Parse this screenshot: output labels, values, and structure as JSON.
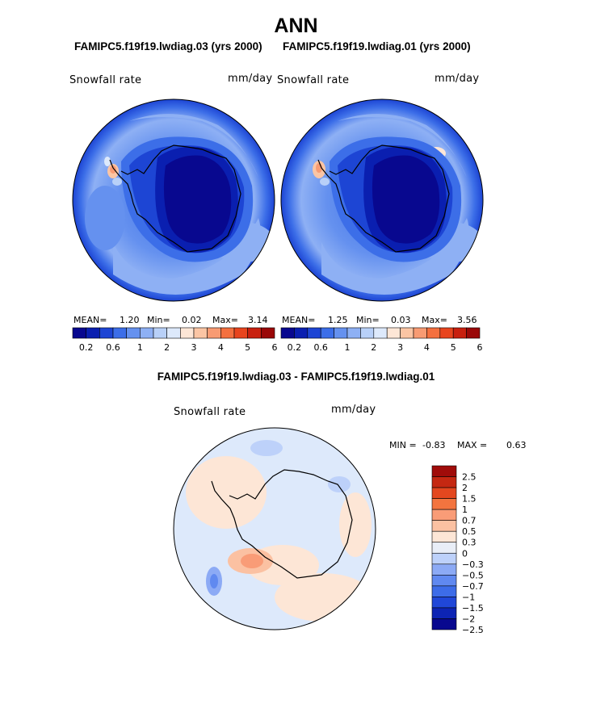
{
  "figure_title": "ANN",
  "panels": [
    {
      "case_title": "FAMIPC5.f19f19.lwdiag.03 (yrs 2000)",
      "variable": "Snowfall rate",
      "units": "mm/day",
      "stats": {
        "mean_label": "MEAN=",
        "mean": "1.20",
        "min_label": "Min=",
        "min": "0.02",
        "max_label": "Max=",
        "max": "3.14"
      }
    },
    {
      "case_title": "FAMIPC5.f19f19.lwdiag.01 (yrs 2000)",
      "variable": "Snowfall rate",
      "units": "mm/day",
      "stats": {
        "mean_label": "MEAN=",
        "mean": "1.25",
        "min_label": "Min=",
        "min": "0.03",
        "max_label": "Max=",
        "max": "3.56"
      }
    }
  ],
  "diff_panel": {
    "title": "FAMIPC5.f19f19.lwdiag.03 - FAMIPC5.f19f19.lwdiag.01",
    "variable": "Snowfall rate",
    "units": "mm/day",
    "min_label": "MIN =",
    "min": "-0.83",
    "max_label": "MAX =",
    "max": "0.63"
  },
  "colors": {
    "field_scale": [
      "#08088f",
      "#0a1fb0",
      "#1d45d4",
      "#3c6ee8",
      "#6591ef",
      "#8eb0f4",
      "#b8d0f8",
      "#dde9fb",
      "#fde6d6",
      "#fbc5a4",
      "#f89b73",
      "#f4703f",
      "#e8451e",
      "#c8200f",
      "#9a0808"
    ],
    "diff_scale": [
      "#08088f",
      "#0d24b4",
      "#2047d8",
      "#3d6ce8",
      "#6089f0",
      "#8caaf5",
      "#bdd1fa",
      "#e9eef7",
      "#fde6d6",
      "#fbc1a2",
      "#f99c77",
      "#f3743f",
      "#e4471f",
      "#c52812",
      "#a00c0a"
    ],
    "coast": "#000000"
  },
  "chart_data": [
    {
      "type": "heatmap",
      "subtype": "south-polar contour map",
      "title": "FAMIPC5.f19f19.lwdiag.03 (yrs 2000)",
      "variable": "Snowfall rate",
      "units": "mm/day",
      "mean": 1.2,
      "min": 0.02,
      "max": 3.14,
      "colorbar_levels": [
        0.2,
        0.4,
        0.6,
        0.8,
        1,
        1.5,
        2,
        2.5,
        3,
        3.5,
        4,
        4.5,
        5,
        5.5,
        6
      ],
      "colorbar_tick_labels": [
        "0.2",
        "0.6",
        "1",
        "2",
        "3",
        "4",
        "5",
        "6"
      ]
    },
    {
      "type": "heatmap",
      "subtype": "south-polar contour map",
      "title": "FAMIPC5.f19f19.lwdiag.01 (yrs 2000)",
      "variable": "Snowfall rate",
      "units": "mm/day",
      "mean": 1.25,
      "min": 0.03,
      "max": 3.56,
      "colorbar_levels": [
        0.2,
        0.4,
        0.6,
        0.8,
        1,
        1.5,
        2,
        2.5,
        3,
        3.5,
        4,
        4.5,
        5,
        5.5,
        6
      ],
      "colorbar_tick_labels": [
        "0.2",
        "0.6",
        "1",
        "2",
        "3",
        "4",
        "5",
        "6"
      ]
    },
    {
      "type": "heatmap",
      "subtype": "south-polar difference contour map",
      "title": "FAMIPC5.f19f19.lwdiag.03 - FAMIPC5.f19f19.lwdiag.01",
      "variable": "Snowfall rate",
      "units": "mm/day",
      "min": -0.83,
      "max": 0.63,
      "colorbar_levels": [
        -2.5,
        -2,
        -1.5,
        -1,
        -0.7,
        -0.5,
        -0.3,
        0,
        0.3,
        0.5,
        0.7,
        1,
        1.5,
        2,
        2.5
      ],
      "colorbar_tick_labels": [
        "2.5",
        "2",
        "1.5",
        "1",
        "0.7",
        "0.5",
        "0.3",
        "0",
        "−0.3",
        "−0.5",
        "−0.7",
        "−1",
        "−1.5",
        "−2",
        "−2.5"
      ]
    }
  ]
}
